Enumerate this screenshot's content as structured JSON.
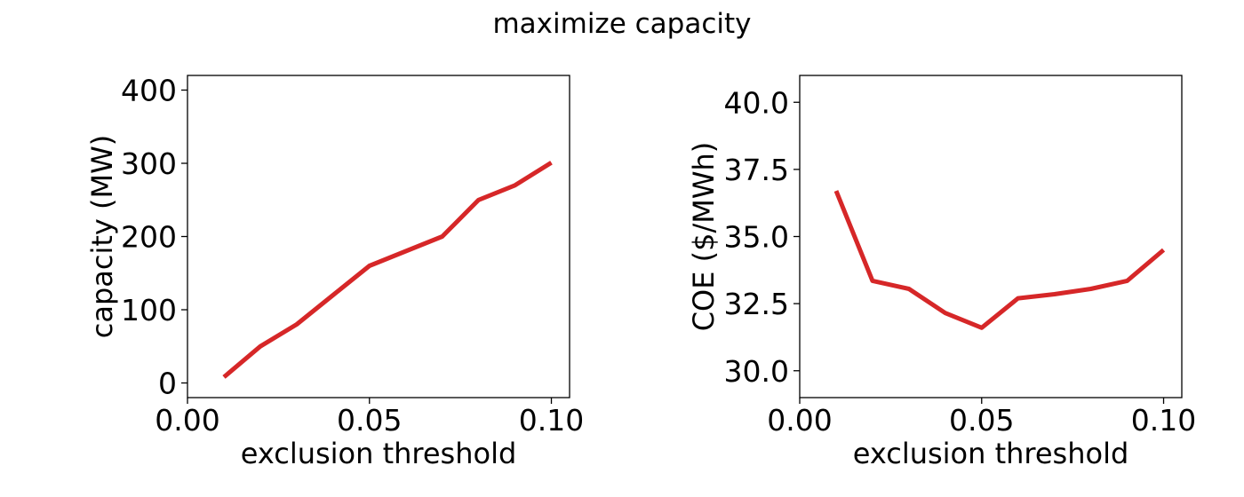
{
  "figure": {
    "title": "maximize capacity"
  },
  "colors": {
    "series": "#d62728",
    "axes": "#000000",
    "background": "#ffffff"
  },
  "chart_data": [
    {
      "type": "line",
      "title": "",
      "xlabel": "exclusion threshold",
      "ylabel": "capacity (MW)",
      "xlim": [
        0.0,
        0.105
      ],
      "ylim": [
        -20,
        420
      ],
      "xticks": [
        0.0,
        0.05,
        0.1
      ],
      "xtick_labels": [
        "0.00",
        "0.05",
        "0.10"
      ],
      "yticks": [
        0,
        100,
        200,
        300,
        400
      ],
      "ytick_labels": [
        "0",
        "100",
        "200",
        "300",
        "400"
      ],
      "grid": false,
      "legend": "none",
      "series": [
        {
          "x": [
            0.01,
            0.02,
            0.03,
            0.04,
            0.05,
            0.06,
            0.07,
            0.08,
            0.09,
            0.1
          ],
          "y": [
            8,
            50,
            80,
            120,
            160,
            180,
            200,
            250,
            270,
            301
          ]
        }
      ]
    },
    {
      "type": "line",
      "title": "",
      "xlabel": "exclusion threshold",
      "ylabel": "COE ($/MWh)",
      "xlim": [
        0.0,
        0.105
      ],
      "ylim": [
        29.0,
        41.0
      ],
      "xticks": [
        0.0,
        0.05,
        0.1
      ],
      "xtick_labels": [
        "0.00",
        "0.05",
        "0.10"
      ],
      "yticks": [
        30.0,
        32.5,
        35.0,
        37.5,
        40.0
      ],
      "ytick_labels": [
        "30.0",
        "32.5",
        "35.0",
        "37.5",
        "40.0"
      ],
      "grid": false,
      "legend": "none",
      "series": [
        {
          "x": [
            0.01,
            0.02,
            0.03,
            0.04,
            0.05,
            0.06,
            0.07,
            0.08,
            0.09,
            0.1
          ],
          "y": [
            36.7,
            33.35,
            33.05,
            32.15,
            31.6,
            32.7,
            32.85,
            33.05,
            33.35,
            34.5
          ]
        }
      ]
    }
  ]
}
